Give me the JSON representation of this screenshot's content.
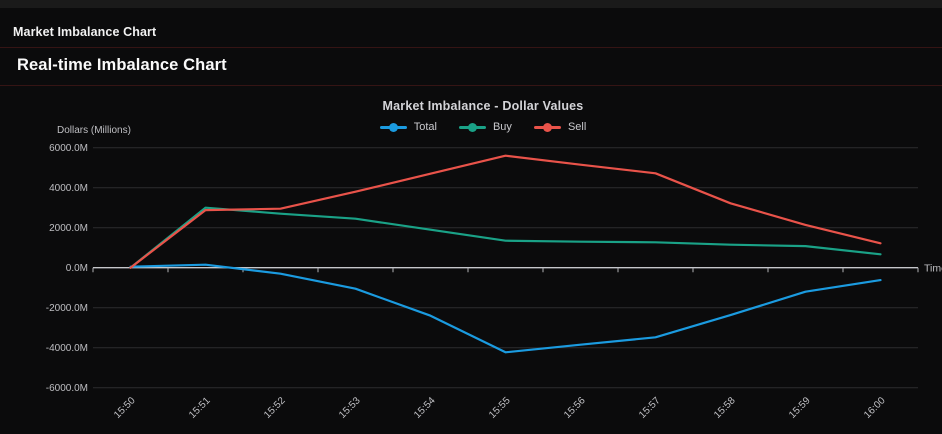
{
  "window": {
    "title": "Market Imbalance Chart"
  },
  "section": {
    "heading": "Real-time Imbalance Chart"
  },
  "chart_data": {
    "type": "line",
    "title": "Market Imbalance - Dollar Values",
    "ylabel": "Dollars (Millions)",
    "xlabel": "Time",
    "ylim": [
      -6000,
      6000
    ],
    "grid": true,
    "legend_position": "top-center",
    "x_categories": [
      "15:50",
      "15:51",
      "15:52",
      "15:53",
      "15:54",
      "15:55",
      "15:56",
      "15:57",
      "15:58",
      "15:59",
      "16:00"
    ],
    "y_ticks": [
      6000,
      4000,
      2000,
      0,
      -2000,
      -4000,
      -6000
    ],
    "y_tick_labels": [
      "6000.0M",
      "4000.0M",
      "2000.0M",
      "0.0M",
      "-2000.0M",
      "-4000.0M",
      "-6000.0M"
    ],
    "series": [
      {
        "name": "Total",
        "color": "#1b9be0",
        "values": [
          50,
          150,
          -300,
          -1050,
          -2400,
          -4230,
          -3850,
          -3480,
          -2370,
          -1200,
          -620
        ]
      },
      {
        "name": "Buy",
        "color": "#1aa287",
        "values": [
          0,
          3000,
          2700,
          2450,
          1900,
          1350,
          1300,
          1270,
          1150,
          1080,
          670
        ]
      },
      {
        "name": "Sell",
        "color": "#e9534a",
        "values": [
          0,
          2880,
          2950,
          3800,
          4700,
          5600,
          5150,
          4720,
          3220,
          2140,
          1220
        ]
      }
    ]
  },
  "theme": {
    "grid_color": "#2d2d2e",
    "axis_color": "#c6c7cb",
    "tick_color": "#b0b0b4",
    "label_color": "#bfbfc3",
    "separator_color": "#351414"
  }
}
